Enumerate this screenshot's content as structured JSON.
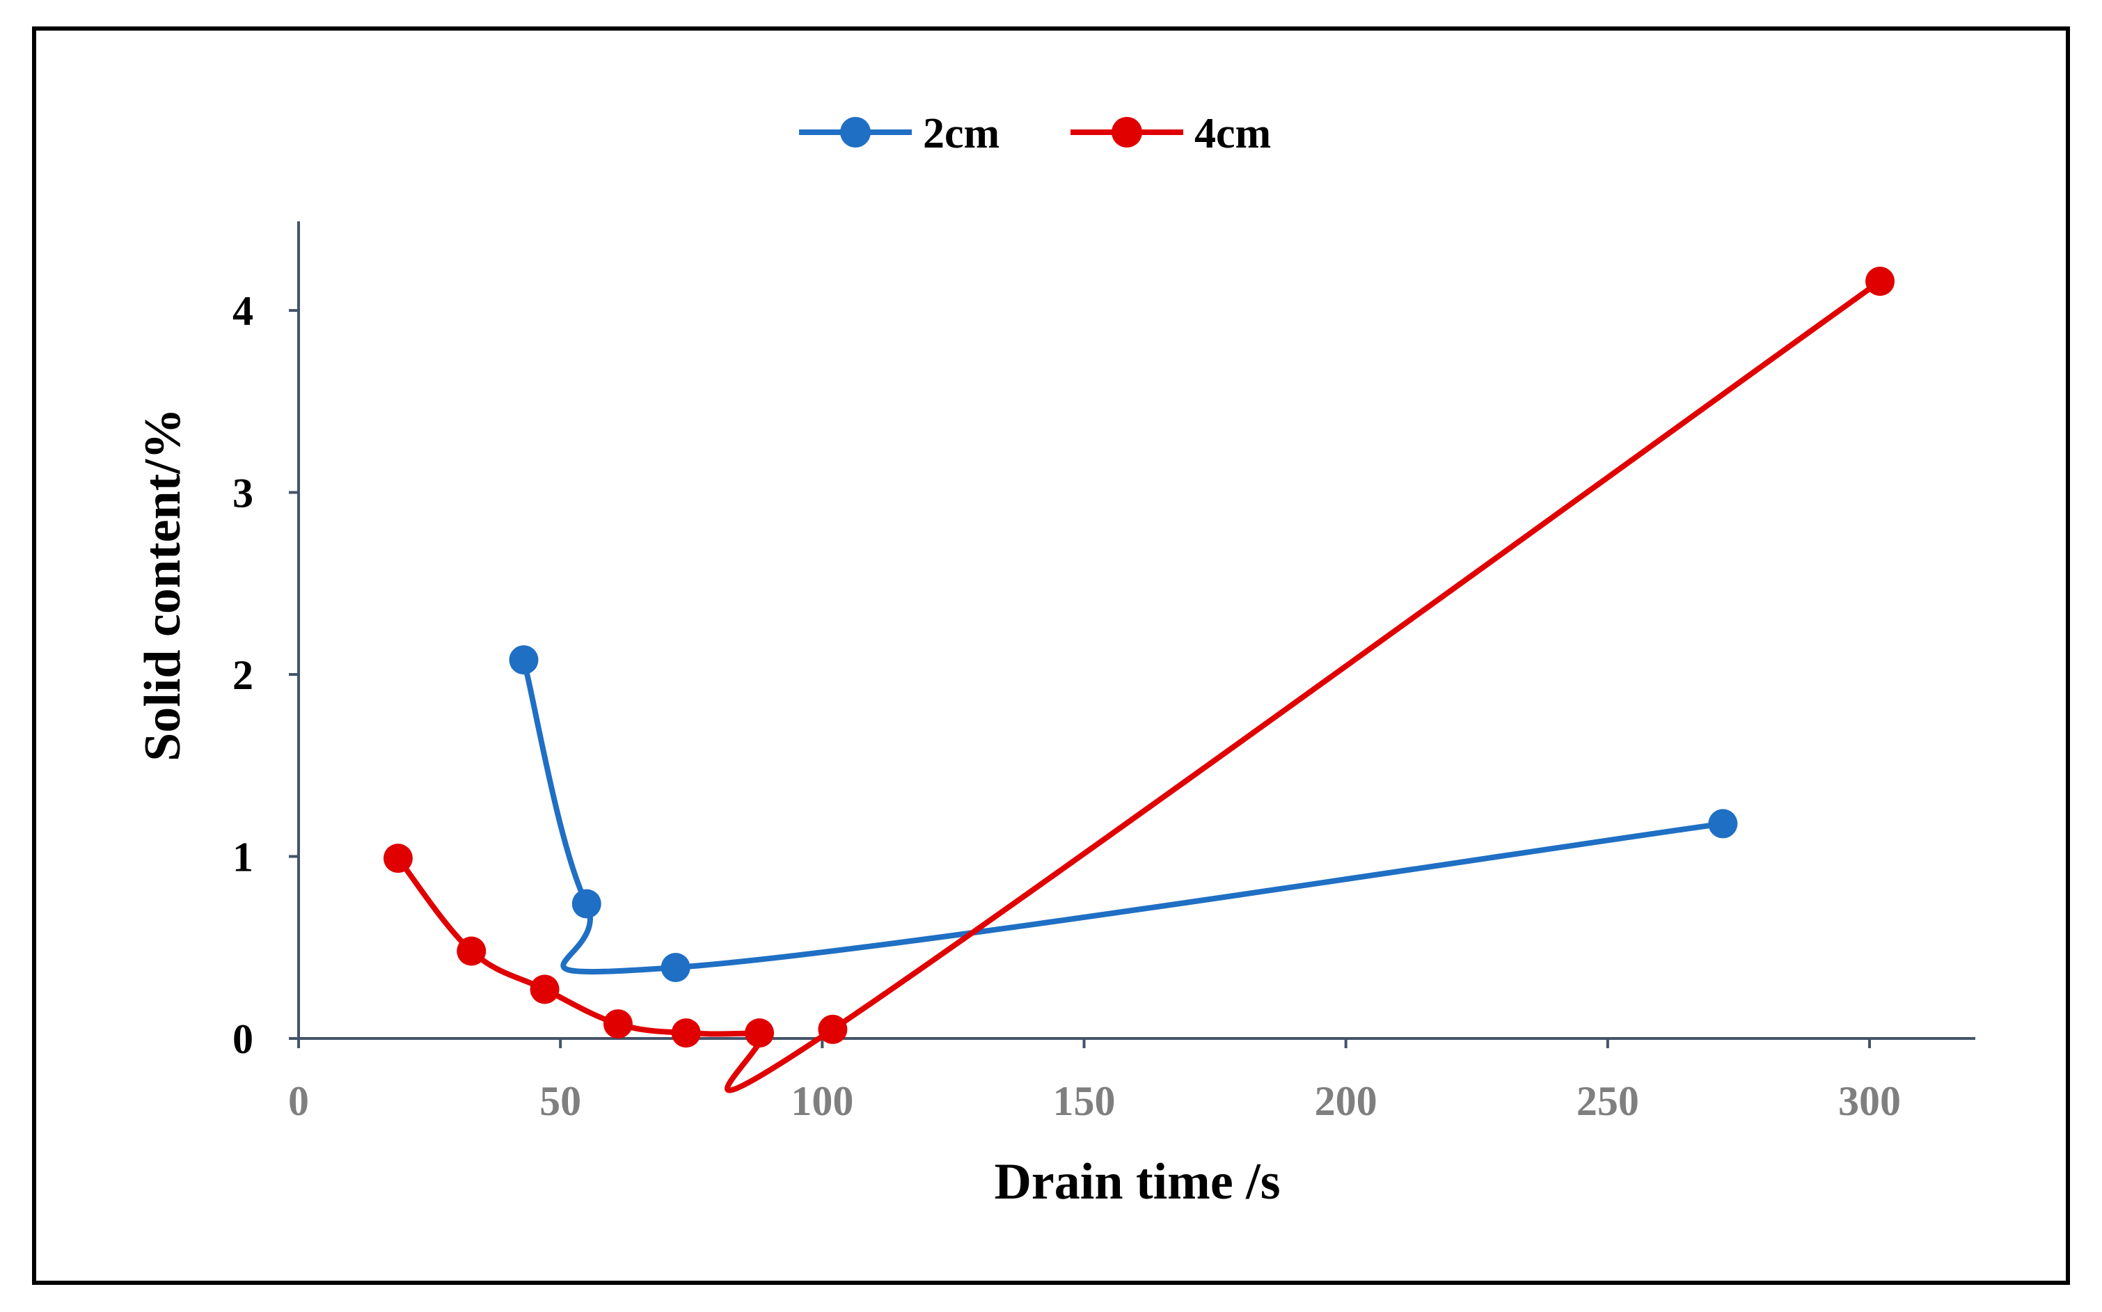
{
  "chart_data": {
    "type": "line",
    "title": "",
    "xlabel": "Drain time /s",
    "ylabel": "Solid content/%",
    "xlim": [
      0,
      320
    ],
    "ylim": [
      0,
      4.5
    ],
    "x_ticks": [
      0,
      50,
      100,
      150,
      200,
      250,
      300
    ],
    "y_ticks": [
      0,
      1,
      2,
      3,
      4
    ],
    "legend_position": "top-center",
    "grid": false,
    "series": [
      {
        "name": "2cm",
        "color": "#1f6fc4",
        "smooth": true,
        "points": [
          [
            43,
            2.08
          ],
          [
            55,
            0.74
          ],
          [
            72,
            0.39
          ],
          [
            272,
            1.18
          ]
        ]
      },
      {
        "name": "4cm",
        "color": "#e00000",
        "smooth": true,
        "points": [
          [
            19,
            0.99
          ],
          [
            33,
            0.48
          ],
          [
            47,
            0.27
          ],
          [
            61,
            0.08
          ],
          [
            74,
            0.03
          ],
          [
            88,
            0.03
          ],
          [
            102,
            0.05
          ],
          [
            302,
            4.16
          ]
        ]
      }
    ]
  }
}
